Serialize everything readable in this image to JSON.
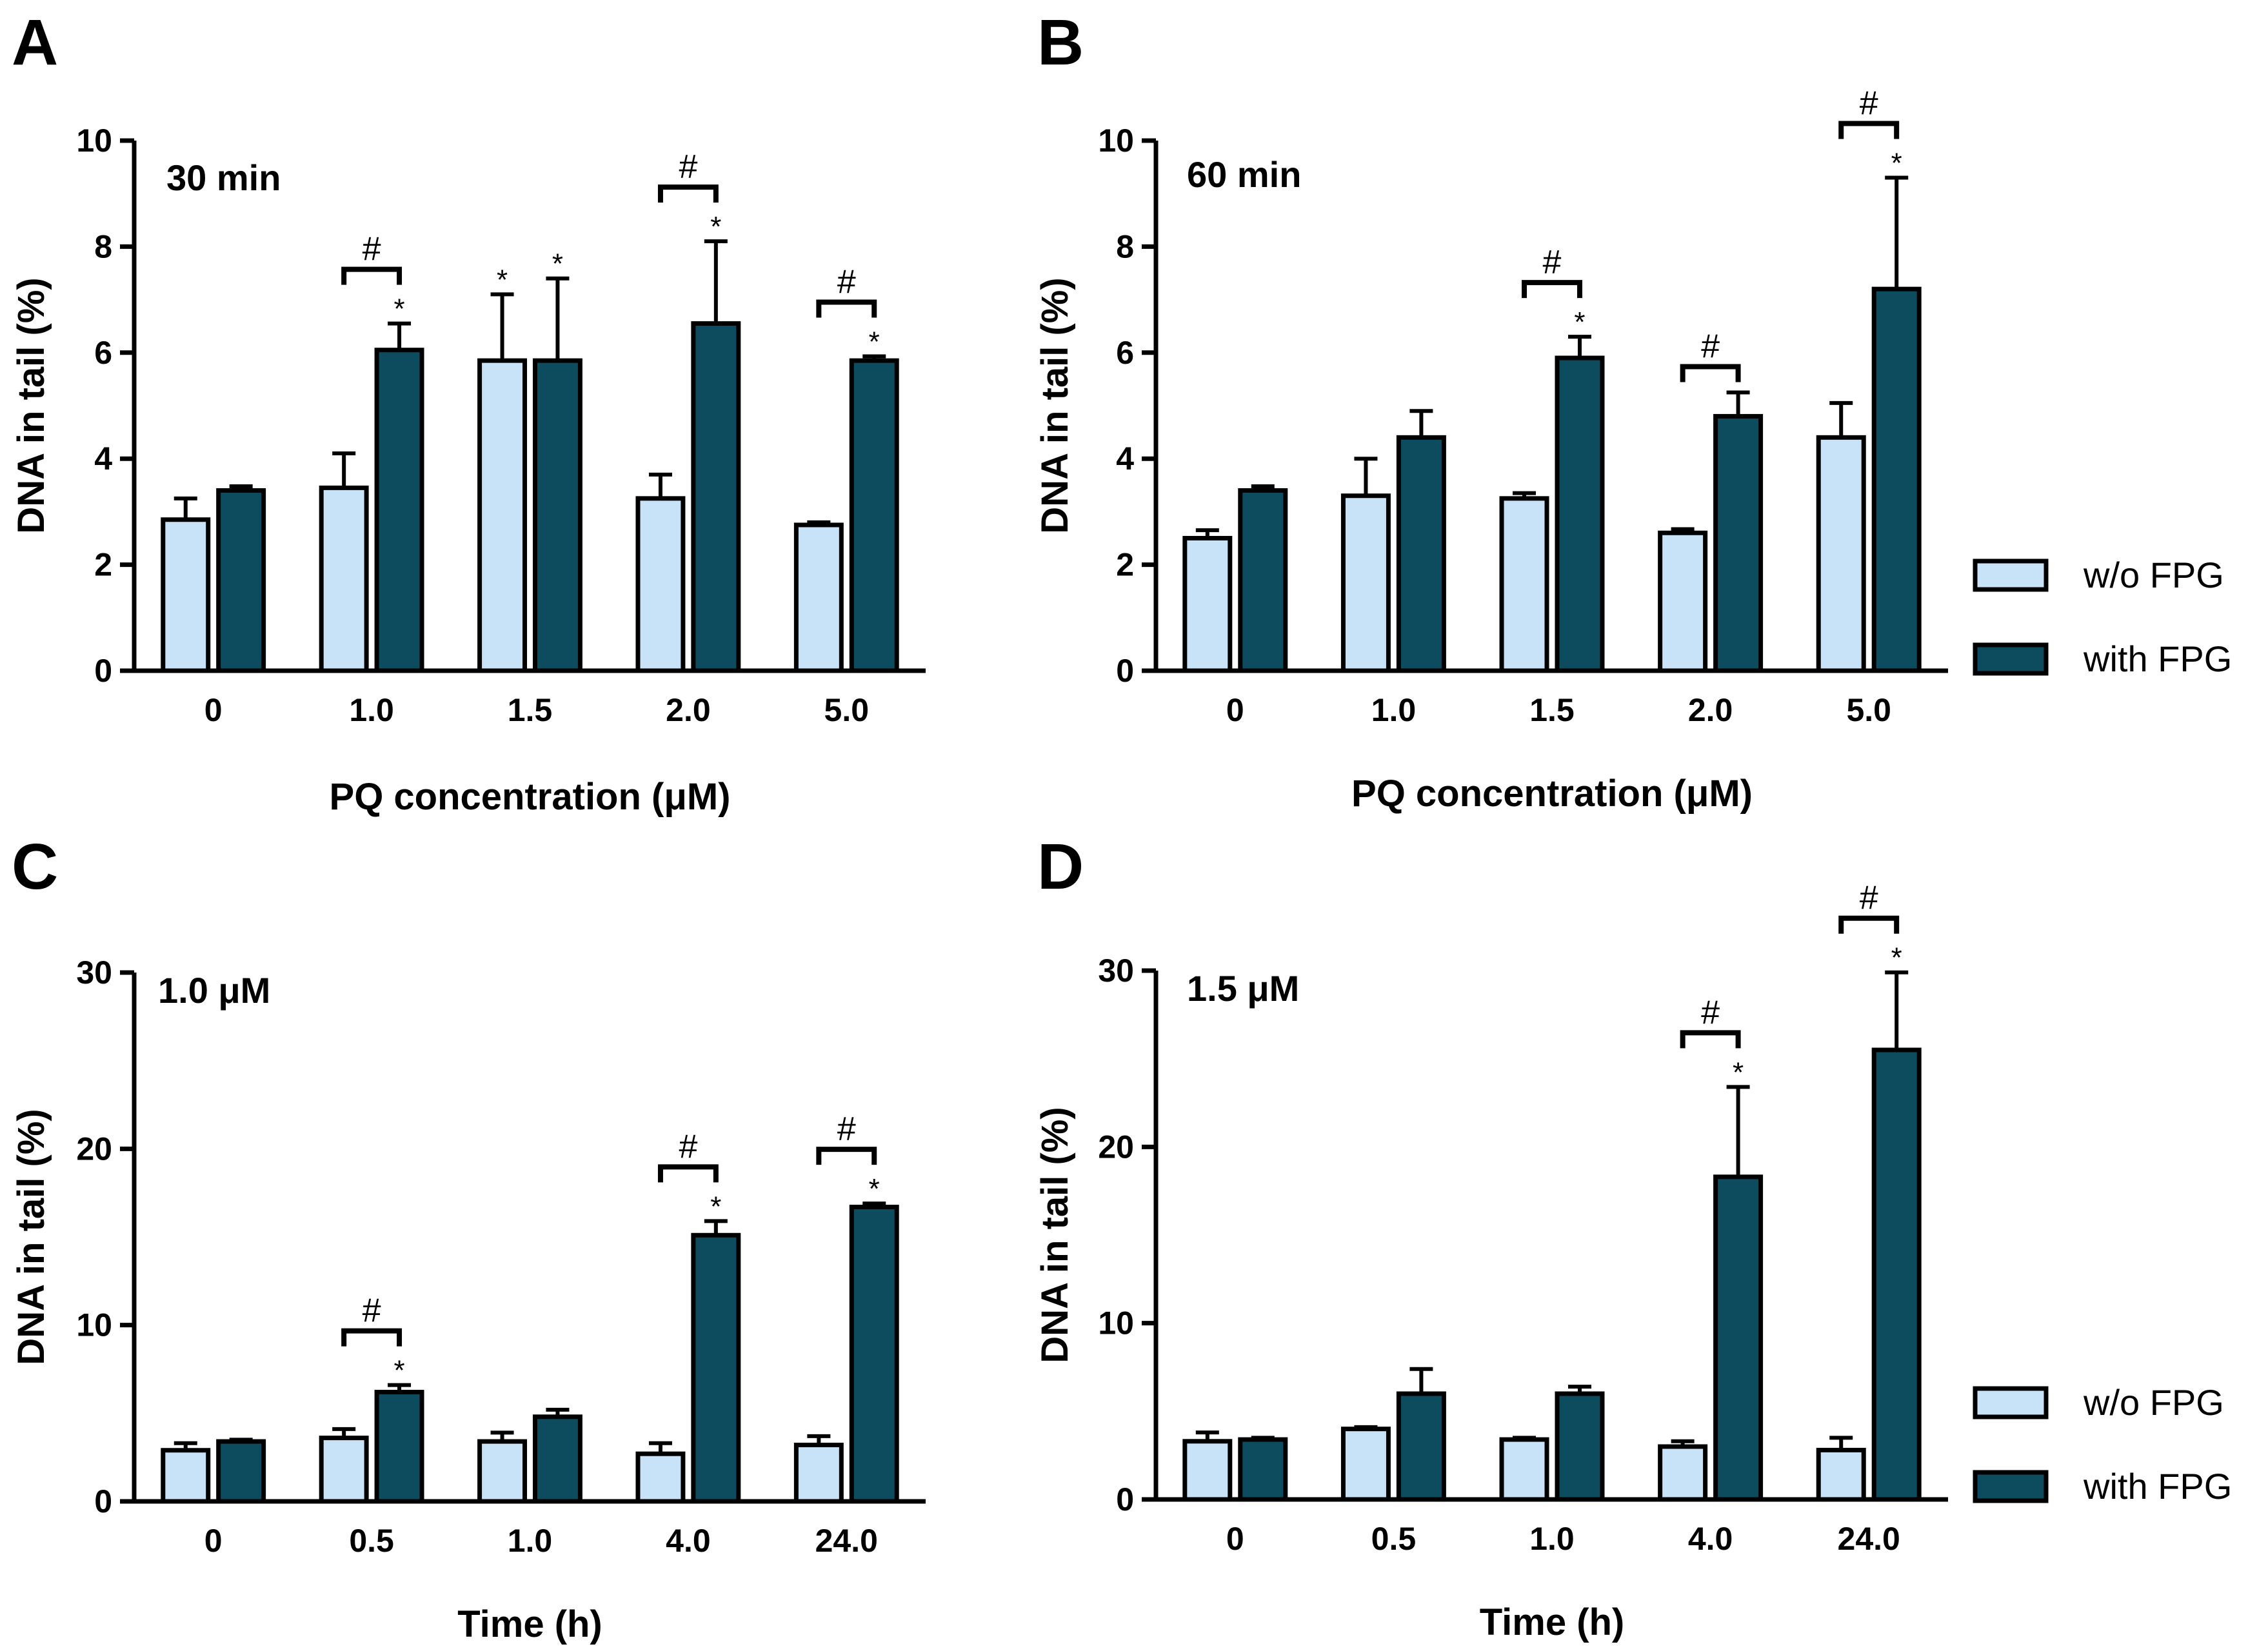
{
  "colors": {
    "without": "#c8e2f8",
    "with": "#0d4b5e",
    "outline": "#000000"
  },
  "legend": {
    "without_label": "w/o FPG",
    "with_label": "with FPG"
  },
  "chart_data": [
    {
      "panel": "A",
      "type": "bar",
      "title": "30 min",
      "xlabel": "PQ concentration (μM)",
      "ylabel": "DNA in tail  (%)",
      "ylim": [
        0,
        10
      ],
      "yticks": [
        0,
        2,
        4,
        6,
        8,
        10
      ],
      "ytick_labels": [
        "0",
        "2",
        "4",
        "6",
        "8",
        "10"
      ],
      "categories": [
        "0",
        "1.0",
        "1.5",
        "2.0",
        "5.0"
      ],
      "series": [
        {
          "name": "w/o FPG",
          "values": [
            2.85,
            3.45,
            5.85,
            3.25,
            2.75
          ],
          "errors": [
            0.4,
            0.65,
            1.25,
            0.45,
            0.05
          ],
          "stars": [
            "",
            "",
            "*",
            "",
            ""
          ]
        },
        {
          "name": "with FPG",
          "values": [
            3.4,
            6.05,
            5.85,
            6.55,
            5.85
          ],
          "errors": [
            0.08,
            0.5,
            1.55,
            1.55,
            0.08
          ],
          "stars": [
            "",
            "*",
            "*",
            "*",
            "*"
          ]
        }
      ],
      "hash_marks": [
        "",
        "#",
        "",
        "#",
        "#"
      ]
    },
    {
      "panel": "B",
      "type": "bar",
      "title": "60 min",
      "xlabel": "PQ concentration (μM)",
      "ylabel": "DNA in tail  (%)",
      "ylim": [
        0,
        10
      ],
      "yticks": [
        0,
        2,
        4,
        6,
        8,
        10
      ],
      "ytick_labels": [
        "0",
        "2",
        "4",
        "6",
        "8",
        "10"
      ],
      "categories": [
        "0",
        "1.0",
        "1.5",
        "2.0",
        "5.0"
      ],
      "series": [
        {
          "name": "w/o FPG",
          "values": [
            2.5,
            3.3,
            3.25,
            2.6,
            4.4
          ],
          "errors": [
            0.15,
            0.7,
            0.1,
            0.07,
            0.65
          ],
          "stars": [
            "",
            "",
            "",
            "",
            ""
          ]
        },
        {
          "name": "with FPG",
          "values": [
            3.4,
            4.4,
            5.9,
            4.8,
            7.2
          ],
          "errors": [
            0.08,
            0.5,
            0.4,
            0.45,
            2.1
          ],
          "stars": [
            "",
            "",
            "*",
            "",
            "*"
          ]
        }
      ],
      "hash_marks": [
        "",
        "",
        "#",
        "#",
        "#"
      ]
    },
    {
      "panel": "C",
      "type": "bar",
      "title": "1.0 μM",
      "xlabel": "Time (h)",
      "ylabel": "DNA in tail  (%)",
      "ylim": [
        0,
        30
      ],
      "yticks": [
        0,
        10,
        20,
        30
      ],
      "ytick_labels": [
        "0",
        "10",
        "20",
        "30"
      ],
      "categories": [
        "0",
        "0.5",
        "1.0",
        "4.0",
        "24.0"
      ],
      "series": [
        {
          "name": "w/o FPG",
          "values": [
            2.9,
            3.6,
            3.4,
            2.7,
            3.2
          ],
          "errors": [
            0.4,
            0.5,
            0.5,
            0.6,
            0.5
          ],
          "stars": [
            "",
            "",
            "",
            "",
            ""
          ]
        },
        {
          "name": "with FPG",
          "values": [
            3.4,
            6.2,
            4.8,
            15.1,
            16.7
          ],
          "errors": [
            0.1,
            0.4,
            0.4,
            0.8,
            0.2
          ],
          "stars": [
            "",
            "*",
            "",
            "*",
            "*"
          ]
        }
      ],
      "hash_marks": [
        "",
        "#",
        "",
        "#",
        "#"
      ]
    },
    {
      "panel": "D",
      "type": "bar",
      "title": "1.5 μM",
      "xlabel": "Time (h)",
      "ylabel": "DNA in tail  (%)",
      "ylim": [
        0,
        30
      ],
      "yticks": [
        0,
        10,
        20,
        30
      ],
      "ytick_labels": [
        "0",
        "10",
        "20",
        "30"
      ],
      "categories": [
        "0",
        "0.5",
        "1.0",
        "4.0",
        "24.0"
      ],
      "series": [
        {
          "name": "w/o FPG",
          "values": [
            3.3,
            4.0,
            3.4,
            3.0,
            2.8
          ],
          "errors": [
            0.5,
            0.1,
            0.1,
            0.3,
            0.7
          ],
          "stars": [
            "",
            "",
            "",
            "",
            ""
          ]
        },
        {
          "name": "with FPG",
          "values": [
            3.4,
            6.0,
            6.0,
            18.3,
            25.5
          ],
          "errors": [
            0.1,
            1.4,
            0.4,
            5.1,
            4.4
          ],
          "stars": [
            "",
            "",
            "",
            "*",
            "*"
          ]
        }
      ],
      "hash_marks": [
        "",
        "",
        "",
        "#",
        "#"
      ]
    }
  ]
}
